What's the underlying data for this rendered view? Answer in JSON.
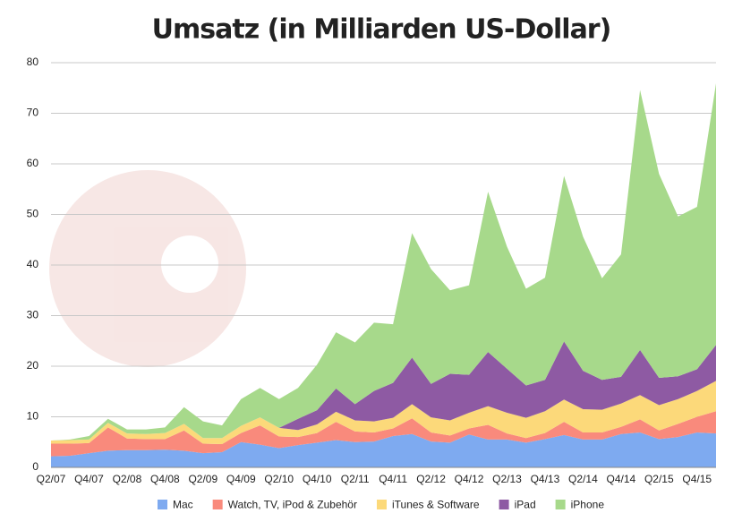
{
  "chart_data": {
    "type": "stacked-area",
    "title": "Umsatz (in Milliarden US-Dollar)",
    "categories": [
      "Q2/07",
      null,
      "Q4/07",
      null,
      "Q2/08",
      null,
      "Q4/08",
      null,
      "Q2/09",
      null,
      "Q4/09",
      null,
      "Q2/10",
      null,
      "Q4/10",
      null,
      "Q2/11",
      null,
      "Q4/11",
      null,
      "Q2/12",
      null,
      "Q4/12",
      null,
      "Q2/13",
      null,
      "Q4/13",
      null,
      "Q2/14",
      null,
      "Q4/14",
      null,
      "Q2/15",
      null,
      "Q4/15",
      null
    ],
    "series": [
      {
        "name": "Mac",
        "color": "#7eaaf0",
        "values": [
          2.2,
          2.3,
          2.8,
          3.3,
          3.4,
          3.4,
          3.5,
          3.3,
          2.8,
          3.0,
          5.0,
          4.5,
          3.8,
          4.4,
          4.9,
          5.4,
          5.0,
          5.1,
          6.2,
          6.6,
          5.1,
          4.9,
          6.5,
          5.5,
          5.5,
          4.9,
          5.6,
          6.4,
          5.5,
          5.5,
          6.6,
          6.9,
          5.6,
          6.0,
          6.9,
          6.7
        ]
      },
      {
        "name": " Watch,  TV, iPod & Zubehör",
        "color": "#f98a7c",
        "values": [
          2.5,
          2.4,
          2.0,
          4.6,
          2.3,
          2.2,
          2.1,
          4.0,
          1.9,
          1.6,
          1.8,
          3.8,
          2.3,
          1.6,
          1.9,
          3.6,
          2.1,
          1.8,
          1.5,
          3.1,
          1.8,
          1.4,
          1.2,
          2.9,
          1.2,
          0.9,
          1.2,
          2.6,
          1.4,
          1.4,
          1.4,
          2.6,
          1.7,
          2.6,
          3.1,
          4.4
        ]
      },
      {
        "name": "iTunes & Software",
        "color": "#fcd97a",
        "values": [
          0.6,
          0.7,
          0.7,
          0.9,
          1.0,
          1.0,
          1.2,
          1.3,
          1.1,
          1.2,
          1.4,
          1.6,
          1.7,
          1.4,
          1.7,
          2.0,
          2.2,
          2.2,
          2.1,
          2.8,
          3.0,
          3.0,
          3.1,
          3.7,
          4.1,
          4.0,
          4.3,
          4.4,
          4.6,
          4.5,
          4.6,
          4.8,
          5.0,
          4.9,
          5.1,
          6.0
        ]
      },
      {
        "name": "iPad",
        "color": "#8e5aa3",
        "values": [
          0,
          0,
          0,
          0,
          0,
          0,
          0,
          0,
          0,
          0,
          0,
          0,
          0,
          2.2,
          2.8,
          4.6,
          3.2,
          6.0,
          6.9,
          9.2,
          6.6,
          9.2,
          7.5,
          10.7,
          8.7,
          6.4,
          6.2,
          11.5,
          7.6,
          5.9,
          5.3,
          8.9,
          5.4,
          4.5,
          4.3,
          7.1
        ]
      },
      {
        "name": "iPhone",
        "color": "#a7d98b",
        "values": [
          0,
          0.1,
          0.7,
          0.8,
          0.8,
          0.9,
          1.1,
          3.3,
          3.3,
          2.5,
          5.3,
          5.8,
          5.7,
          6.1,
          9.0,
          11.1,
          12.2,
          13.5,
          11.6,
          24.6,
          22.7,
          16.5,
          17.7,
          31.7,
          24.1,
          19.1,
          20.2,
          32.7,
          26.5,
          20.1,
          24.2,
          51.4,
          40.3,
          31.6,
          32.1,
          51.7
        ]
      }
    ],
    "ylim": [
      0,
      80
    ],
    "yticks": [
      0,
      10,
      20,
      30,
      40,
      50,
      60,
      70,
      80
    ],
    "grid": true,
    "legend": "bottom"
  }
}
